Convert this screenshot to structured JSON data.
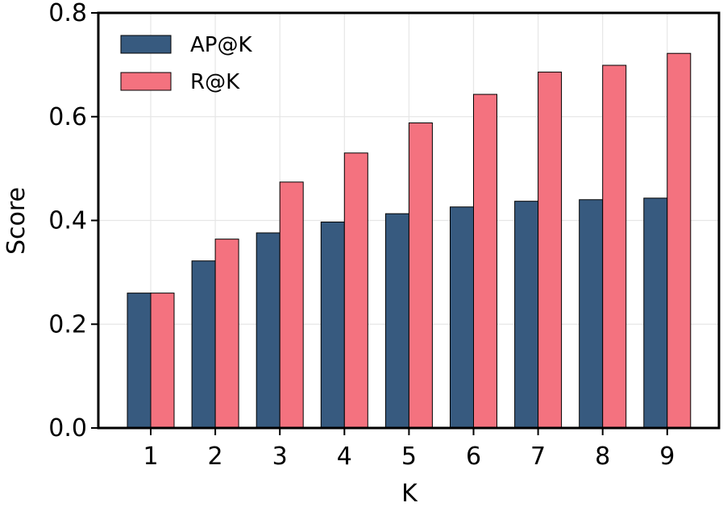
{
  "chart_data": {
    "type": "bar",
    "title": "",
    "xlabel": "K",
    "ylabel": "Score",
    "categories": [
      "1",
      "2",
      "3",
      "4",
      "5",
      "6",
      "7",
      "8",
      "9"
    ],
    "ylim": [
      0,
      0.8
    ],
    "yticks": [
      "0.0",
      "0.2",
      "0.4",
      "0.6",
      "0.8"
    ],
    "grid": true,
    "legend_position": "top-left",
    "series": [
      {
        "name": "AP@K",
        "color": "#375a7f",
        "values": [
          0.26,
          0.322,
          0.376,
          0.397,
          0.413,
          0.426,
          0.437,
          0.44,
          0.443
        ]
      },
      {
        "name": "R@K",
        "color": "#f4727f",
        "values": [
          0.26,
          0.364,
          0.474,
          0.53,
          0.588,
          0.643,
          0.686,
          0.699,
          0.722
        ]
      }
    ]
  }
}
